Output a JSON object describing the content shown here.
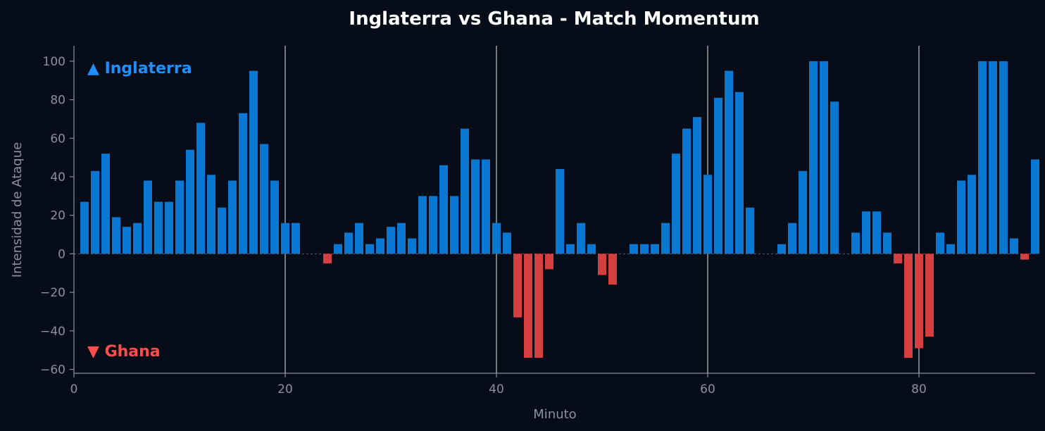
{
  "chart_data": {
    "type": "bar",
    "title": "Inglaterra vs Ghana - Match Momentum",
    "xlabel": "Minuto",
    "ylabel": "Intensidad de Ataque",
    "xlim": [
      0,
      91
    ],
    "ylim": [
      -62,
      108
    ],
    "xticks": [
      0,
      20,
      40,
      60,
      80
    ],
    "yticks": [
      -60,
      -40,
      -20,
      0,
      20,
      40,
      60,
      80,
      100
    ],
    "period_lines": [
      20,
      40,
      60,
      80
    ],
    "team_labels": {
      "positive": "▲ Inglaterra",
      "negative": "▼ Ghana"
    },
    "colors": {
      "positive": "#0a78d2",
      "negative": "#d63f3f",
      "positive_label": "#1e90ff",
      "negative_label": "#ff4d4d",
      "background": "#070d18"
    },
    "x": [
      1,
      2,
      3,
      4,
      5,
      6,
      7,
      8,
      9,
      10,
      11,
      12,
      13,
      14,
      15,
      16,
      17,
      18,
      19,
      20,
      21,
      22,
      23,
      24,
      25,
      26,
      27,
      28,
      29,
      30,
      31,
      32,
      33,
      34,
      35,
      36,
      37,
      38,
      39,
      40,
      41,
      42,
      43,
      44,
      45,
      46,
      47,
      48,
      49,
      50,
      51,
      52,
      53,
      54,
      55,
      56,
      57,
      58,
      59,
      60,
      61,
      62,
      63,
      64,
      65,
      66,
      67,
      68,
      69,
      70,
      71,
      72,
      73,
      74,
      75,
      76,
      77,
      78,
      79,
      80,
      81,
      82,
      83,
      84,
      85,
      86,
      87,
      88,
      89,
      90,
      91
    ],
    "values": [
      27,
      43,
      52,
      19,
      14,
      16,
      38,
      27,
      27,
      38,
      54,
      68,
      41,
      24,
      38,
      73,
      95,
      57,
      38,
      16,
      16,
      0,
      0,
      -5,
      5,
      11,
      16,
      5,
      8,
      14,
      16,
      8,
      30,
      30,
      46,
      30,
      65,
      49,
      49,
      16,
      11,
      -33,
      -54,
      -54,
      -8,
      44,
      5,
      16,
      5,
      -11,
      -16,
      0,
      5,
      5,
      5,
      16,
      52,
      65,
      71,
      41,
      81,
      95,
      84,
      24,
      0,
      0,
      5,
      16,
      43,
      100,
      100,
      79,
      0,
      11,
      22,
      22,
      11,
      -5,
      -54,
      -49,
      -43,
      11,
      5,
      38,
      41,
      100,
      100,
      100,
      8,
      -3,
      49
    ]
  }
}
